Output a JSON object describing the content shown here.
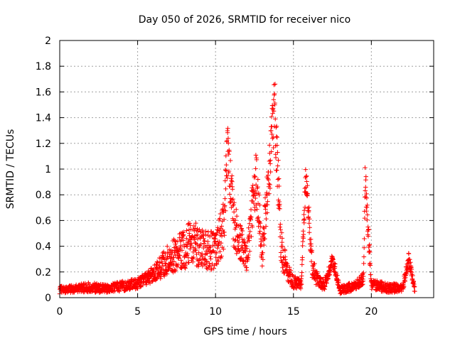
{
  "chart_data": {
    "type": "scatter",
    "title": "Day 050 of 2026, SRMTID for receiver nico",
    "xlabel": "GPS time / hours",
    "ylabel": "SRMTID / TECUs",
    "xlim": [
      0,
      24
    ],
    "ylim": [
      0,
      2
    ],
    "x_ticks": [
      0,
      5,
      10,
      15,
      20
    ],
    "x_tick_labels": [
      "0",
      "5",
      "10",
      "15",
      "20"
    ],
    "y_ticks": [
      0,
      0.2,
      0.4,
      0.6,
      0.8,
      1,
      1.2,
      1.4,
      1.6,
      1.8,
      2
    ],
    "y_tick_labels": [
      "0",
      "0.2",
      "0.4",
      "0.6",
      "0.8",
      "1",
      "1.2",
      "1.4",
      "1.6",
      "1.8",
      "2"
    ],
    "grid": true,
    "marker": "+",
    "marker_color": "#ff0000",
    "series": [
      {
        "name": "SRMTID",
        "x_start": 0,
        "x_end": 22.8,
        "envelope": [
          [
            0.0,
            0.06,
            0.03
          ],
          [
            1.0,
            0.07,
            0.03
          ],
          [
            2.0,
            0.08,
            0.04
          ],
          [
            3.0,
            0.07,
            0.03
          ],
          [
            4.0,
            0.09,
            0.04
          ],
          [
            5.0,
            0.11,
            0.04
          ],
          [
            6.0,
            0.18,
            0.06
          ],
          [
            7.0,
            0.3,
            0.12
          ],
          [
            8.0,
            0.38,
            0.16
          ],
          [
            8.5,
            0.45,
            0.18
          ],
          [
            9.0,
            0.38,
            0.15
          ],
          [
            10.0,
            0.36,
            0.15
          ],
          [
            10.5,
            0.55,
            0.2
          ],
          [
            10.8,
            1.15,
            0.25
          ],
          [
            11.2,
            0.55,
            0.2
          ],
          [
            12.0,
            0.3,
            0.1
          ],
          [
            12.6,
            0.95,
            0.25
          ],
          [
            13.0,
            0.35,
            0.12
          ],
          [
            13.8,
            1.5,
            0.3
          ],
          [
            14.2,
            0.4,
            0.15
          ],
          [
            14.6,
            0.2,
            0.08
          ],
          [
            15.0,
            0.12,
            0.05
          ],
          [
            15.5,
            0.1,
            0.04
          ],
          [
            15.8,
            0.95,
            0.12
          ],
          [
            16.2,
            0.25,
            0.1
          ],
          [
            16.6,
            0.12,
            0.05
          ],
          [
            17.0,
            0.1,
            0.04
          ],
          [
            17.5,
            0.3,
            0.06
          ],
          [
            18.0,
            0.06,
            0.03
          ],
          [
            19.0,
            0.09,
            0.04
          ],
          [
            19.5,
            0.15,
            0.05
          ],
          [
            19.6,
            0.95,
            0.15
          ],
          [
            20.0,
            0.1,
            0.04
          ],
          [
            21.0,
            0.08,
            0.04
          ],
          [
            22.0,
            0.07,
            0.03
          ],
          [
            22.4,
            0.3,
            0.06
          ],
          [
            22.8,
            0.05,
            0.02
          ]
        ]
      }
    ]
  }
}
